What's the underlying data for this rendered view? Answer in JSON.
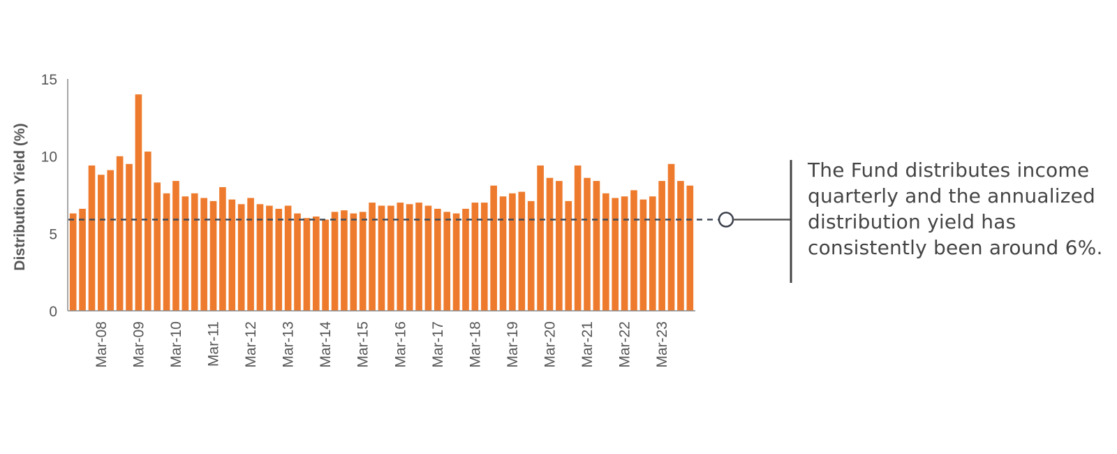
{
  "chart_data": {
    "type": "bar",
    "ylabel": "Distribution Yield (%)",
    "ylim": [
      0,
      15
    ],
    "yticks": [
      0,
      5,
      10,
      15
    ],
    "xtick_labels": [
      "Mar-08",
      "Mar-09",
      "Mar-10",
      "Mar-11",
      "Mar-12",
      "Mar-13",
      "Mar-14",
      "Mar-15",
      "Mar-16",
      "Mar-17",
      "Mar-18",
      "Mar-19",
      "Mar-20",
      "Mar-21",
      "Mar-22",
      "Mar-23"
    ],
    "values": [
      6.3,
      6.6,
      9.4,
      8.8,
      9.1,
      10.0,
      9.5,
      14.0,
      10.3,
      8.3,
      7.6,
      8.4,
      7.4,
      7.6,
      7.3,
      7.1,
      8.0,
      7.2,
      6.9,
      7.3,
      6.9,
      6.8,
      6.6,
      6.8,
      6.3,
      6.0,
      6.1,
      5.9,
      6.4,
      6.5,
      6.3,
      6.4,
      7.0,
      6.8,
      6.8,
      7.0,
      6.9,
      7.0,
      6.8,
      6.6,
      6.4,
      6.3,
      6.6,
      7.0,
      7.0,
      8.1,
      7.4,
      7.6,
      7.7,
      7.1,
      9.4,
      8.6,
      8.4,
      7.1,
      9.4,
      8.6,
      8.4,
      7.6,
      7.3,
      7.4,
      7.8,
      7.2,
      7.4,
      8.4,
      9.5,
      8.4,
      8.1
    ],
    "reference_line": {
      "value": 5.9,
      "style": "dashed"
    },
    "bar_color": "#EE7B2D",
    "grid": false
  },
  "callout": {
    "text": "The Fund distributes income quarterly and the annualized distribution yield has consistently been around 6%."
  }
}
